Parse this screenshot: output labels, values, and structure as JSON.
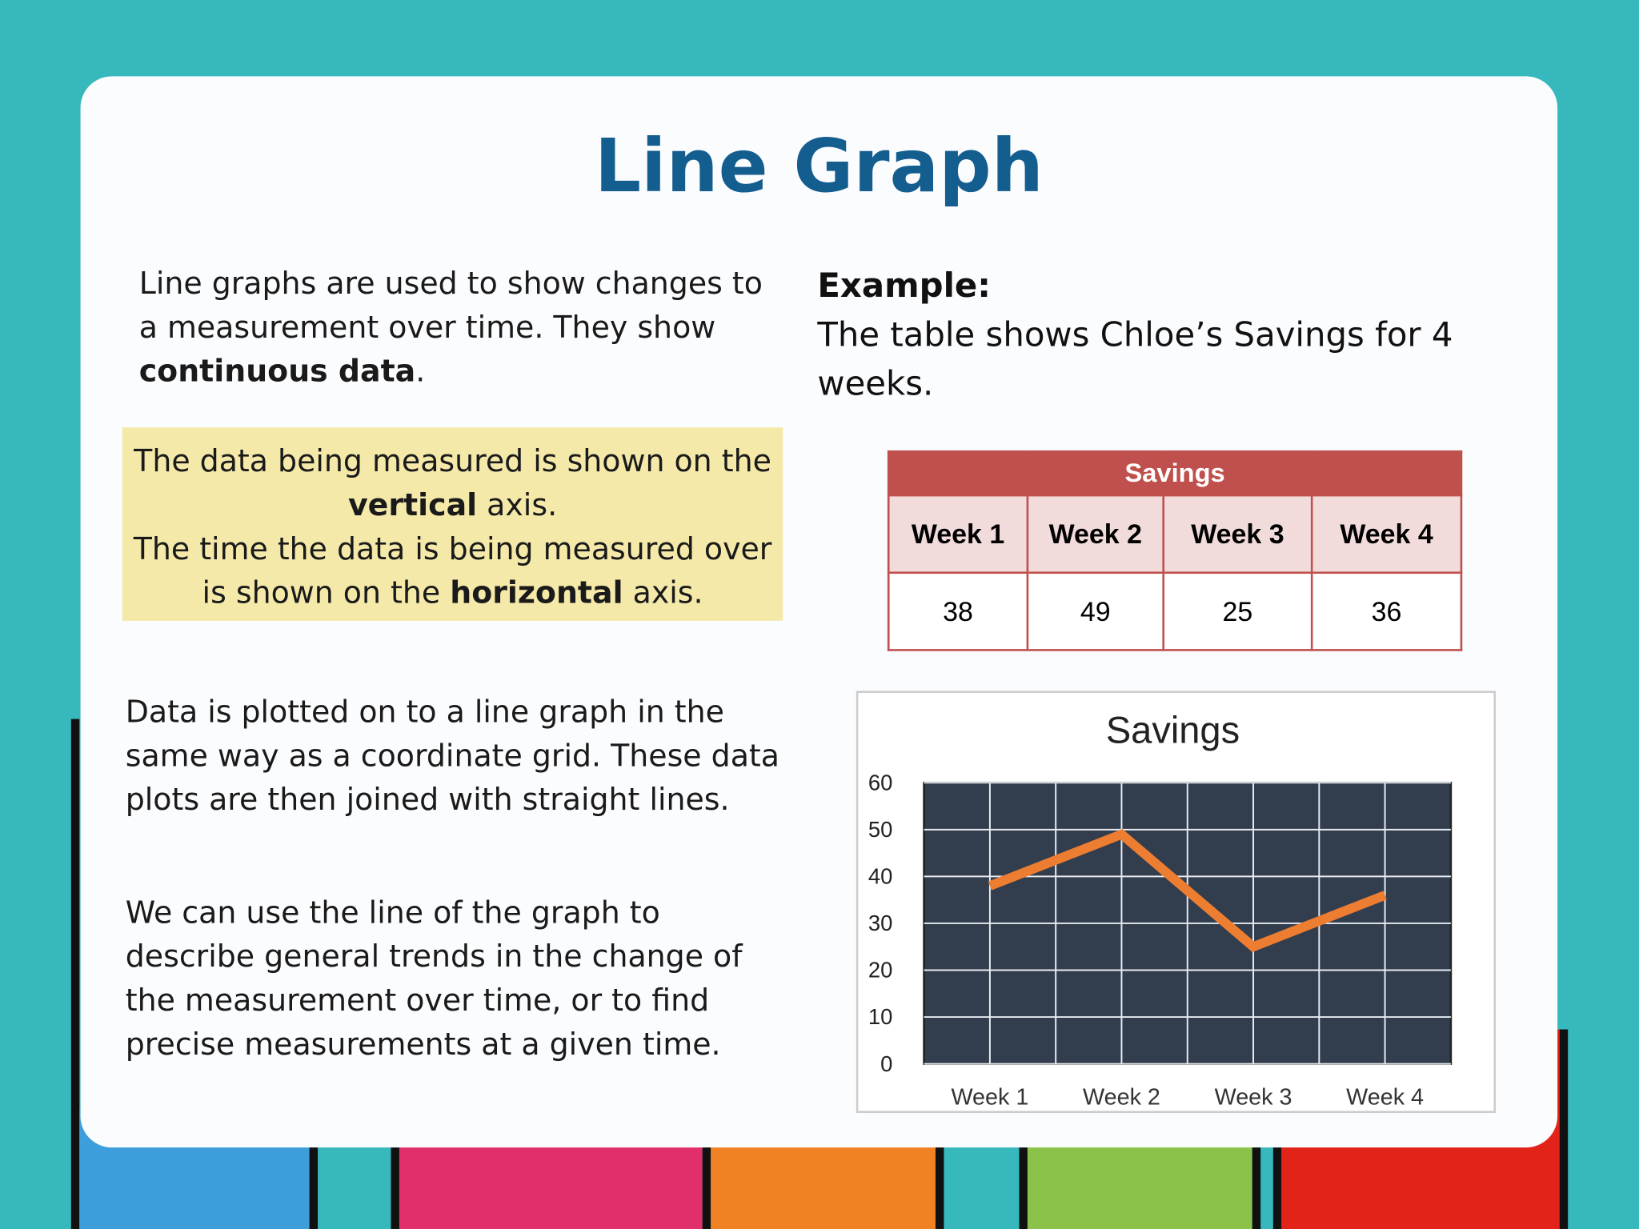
{
  "title": "Line Graph",
  "intro": {
    "parts": [
      "Line graphs are used to show changes to a measurement over time. They show ",
      "continuous data",
      "."
    ]
  },
  "callout": {
    "sentences": [
      [
        "The data being measured is shown on the ",
        "vertical",
        " axis."
      ],
      [
        "The time the data is being measured over is shown on the ",
        "horizontal",
        " axis."
      ]
    ]
  },
  "paragraphs": [
    "Data is plotted on to a line graph in the same way as a coordinate grid. These data plots are then joined with straight lines.",
    "We can use the line of the graph to describe general trends in the change of the measurement over time, or to find precise measurements at a given time."
  ],
  "example": {
    "label": "Example:",
    "text": "The table shows Chloe’s Savings for 4 weeks."
  },
  "table": {
    "title": "Savings",
    "headers": [
      "Week 1",
      "Week 2",
      "Week 3",
      "Week 4"
    ],
    "values": [
      38,
      49,
      25,
      36
    ]
  },
  "chart_data": {
    "type": "line",
    "title": "Savings",
    "categories": [
      "Week 1",
      "Week 2",
      "Week 3",
      "Week 4"
    ],
    "values": [
      38,
      49,
      25,
      36
    ],
    "color": "#ed7d31",
    "ylim": [
      0,
      60
    ],
    "yticks": [
      0,
      10,
      20,
      30,
      40,
      50,
      60
    ],
    "grid": true
  }
}
